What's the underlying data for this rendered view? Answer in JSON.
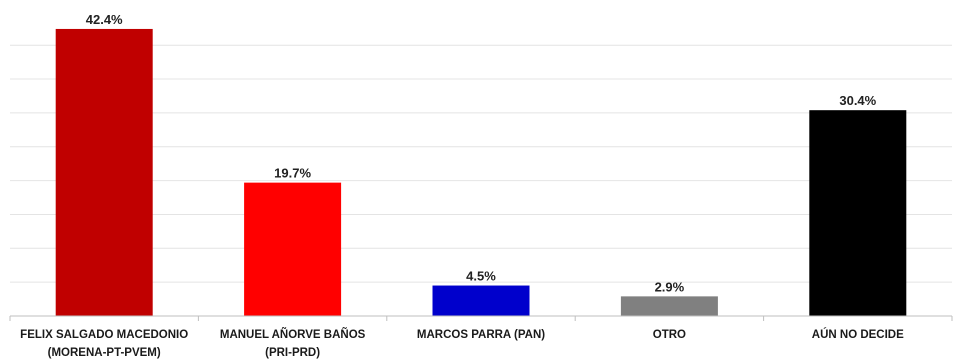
{
  "chart_data": {
    "type": "bar",
    "title": "",
    "xlabel": "",
    "ylabel": "",
    "ylim": [
      0,
      44
    ],
    "grid": true,
    "legend": "none",
    "categories": [
      [
        "FELIX SALGADO MACEDONIO",
        "(MORENA-PT-PVEM)"
      ],
      [
        "MANUEL AÑORVE BAÑOS",
        "(PRI-PRD)"
      ],
      [
        "MARCOS PARRA (PAN)"
      ],
      [
        "OTRO"
      ],
      [
        "AÚN NO DECIDE"
      ]
    ],
    "values": [
      42.4,
      19.7,
      4.5,
      2.9,
      30.4
    ],
    "value_labels": [
      "42.4%",
      "19.7%",
      "4.5%",
      "2.9%",
      "30.4%"
    ],
    "colors": [
      "#c00000",
      "#ff0000",
      "#0000cc",
      "#808080",
      "#000000"
    ]
  }
}
